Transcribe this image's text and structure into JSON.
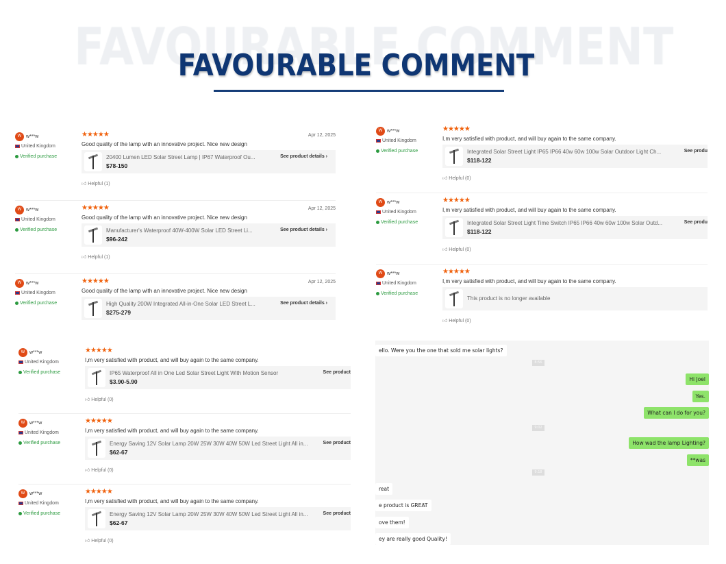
{
  "header": {
    "title": "FAVOURABLE COMMENT"
  },
  "colors": {
    "title": "#0f3673",
    "stars": "#f0620e",
    "verified": "#2b9a3f",
    "avatar": "#e04a16",
    "chat_out": "#8ee36a"
  },
  "reviews": [
    {
      "group": "a",
      "avatar": "W",
      "user": "w***w",
      "country": "United Kingdom",
      "verified": "Verified purchase",
      "rating": 5,
      "date": "Apr 12, 2025",
      "comment": "Good quality of the lamp with an innovative project. Nice new design",
      "product": "20400 Lumen LED Solar Street Lamp | IP67 Waterproof Ou...",
      "price": "$78-150",
      "details": "See product details ›",
      "helpful": "Helpful (1)"
    },
    {
      "group": "a",
      "avatar": "W",
      "user": "w***w",
      "country": "United Kingdom",
      "verified": "Verified purchase",
      "rating": 5,
      "date": "Apr 12, 2025",
      "comment": "Good quality of the lamp with an innovative project. Nice new design",
      "product": "Manufacturer's Waterproof 40W-400W Solar LED Street Li...",
      "price": "$96-242",
      "details": "See product details ›",
      "helpful": "Helpful (1)"
    },
    {
      "group": "a",
      "avatar": "W",
      "user": "w***w",
      "country": "United Kingdom",
      "verified": "Verified purchase",
      "rating": 5,
      "date": "Apr 12, 2025",
      "comment": "Good quality of the lamp with an innovative project. Nice new design",
      "product": "High Quality 200W Integrated All-in-One Solar LED Street L...",
      "price": "$275-279",
      "details": "See product details ›",
      "helpful": ""
    },
    {
      "group": "b",
      "avatar": "W",
      "user": "w***w",
      "country": "United Kingdom",
      "verified": "Verified purchase",
      "rating": 5,
      "date": "",
      "comment": "I,m very satisfied with product, and will buy again to the same company.",
      "product": "IP65 Waterproof All in One Led Solar Street Light With Motion Sensor",
      "price": "$3.90-5.90",
      "details": "See product",
      "helpful": "Helpful (0)"
    },
    {
      "group": "b",
      "avatar": "W",
      "user": "w***w",
      "country": "United Kingdom",
      "verified": "Verified purchase",
      "rating": 5,
      "date": "",
      "comment": "I,m very satisfied with product, and will buy again to the same company.",
      "product": "Energy Saving 12V Solar Lamp 20W 25W 30W 40W 50W Led Street Light All in...",
      "price": "$62-67",
      "details": "See product",
      "helpful": "Helpful (0)"
    },
    {
      "group": "b",
      "avatar": "W",
      "user": "w***w",
      "country": "United Kingdom",
      "verified": "Verified purchase",
      "rating": 5,
      "date": "",
      "comment": "I,m very satisfied with product, and will buy again to the same company.",
      "product": "Energy Saving 12V Solar Lamp 20W 25W 30W 40W 50W Led Street Light All in...",
      "price": "$62-67",
      "details": "See product",
      "helpful": "Helpful (0)"
    },
    {
      "group": "c",
      "avatar": "W",
      "user": "w***w",
      "country": "United Kingdom",
      "verified": "Verified purchase",
      "rating": 5,
      "date": "",
      "comment": "I,m very satisfied with product, and will buy again to the same company.",
      "product": "Integrated Solar Street Light IP65 IP66 40w 60w 100w Solar Outdoor Light Ch...",
      "price": "$118-122",
      "details": "See produ",
      "helpful": "Helpful (0)"
    },
    {
      "group": "c",
      "avatar": "W",
      "user": "w***w",
      "country": "United Kingdom",
      "verified": "Verified purchase",
      "rating": 5,
      "date": "",
      "comment": "I,m very satisfied with product, and will buy again to the same company.",
      "product": "Integrated Solar Street Light Time Switch IP65 IP66 40w 60w 100w Solar Outd...",
      "price": "$118-122",
      "details": "See produ",
      "helpful": "Helpful (0)"
    },
    {
      "group": "c",
      "avatar": "W",
      "user": "w***w",
      "country": "United Kingdom",
      "verified": "Verified purchase",
      "rating": 5,
      "date": "",
      "comment": "I,m very satisfied with product, and will buy again to the same company.",
      "product": "This product is no longer available",
      "price": "",
      "details": "",
      "helpful": "Helpful (0)"
    }
  ],
  "chat": [
    {
      "type": "in",
      "text": "ello.  Were you the one that sold me solar lights?"
    },
    {
      "type": "ts",
      "text": "8:56"
    },
    {
      "type": "out",
      "text": "Hi Joel"
    },
    {
      "type": "out",
      "text": "Yes."
    },
    {
      "type": "out",
      "text": "What can I do for you?"
    },
    {
      "type": "ts",
      "text": "9:02"
    },
    {
      "type": "out",
      "text": "How wad the lamp Lighting?"
    },
    {
      "type": "out",
      "text": "**was"
    },
    {
      "type": "ts",
      "text": "9:18"
    },
    {
      "type": "in",
      "text": "reat"
    },
    {
      "type": "in",
      "text": "e product is GREAT"
    },
    {
      "type": "in",
      "text": "ove them!"
    },
    {
      "type": "in",
      "text": "ey are really good Quality!"
    }
  ]
}
